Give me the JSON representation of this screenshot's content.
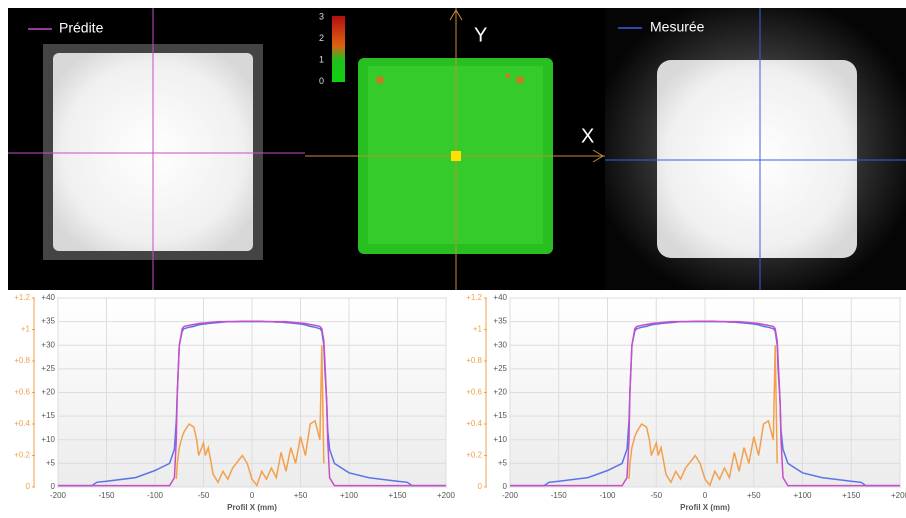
{
  "panels": {
    "predicted_label": "Prédite",
    "measured_label": "Mesurée",
    "axis_x": "X",
    "axis_y": "Y",
    "scale": [
      "3",
      "2",
      "1",
      "0"
    ]
  },
  "chart_data": [
    {
      "type": "line",
      "xlabel": "Profil X (mm)",
      "x": [
        -200,
        -165,
        -160,
        -150,
        -120,
        -100,
        -85,
        -80,
        -78,
        -77,
        -75,
        -72,
        -70,
        -65,
        -60,
        -57,
        -55,
        -50,
        -48,
        -45,
        -40,
        -35,
        -30,
        -25,
        -20,
        -10,
        -5,
        0,
        5,
        10,
        15,
        20,
        25,
        30,
        35,
        40,
        45,
        50,
        55,
        60,
        65,
        70,
        72,
        74,
        75,
        77,
        78,
        80,
        85,
        100,
        120,
        150,
        160,
        165,
        200
      ],
      "series": [
        {
          "color": "#5b74e8",
          "values": [
            0.3,
            0.3,
            1,
            1.2,
            2,
            3.5,
            5,
            8,
            14,
            20,
            30,
            33,
            33.5,
            33.8,
            34,
            34.2,
            34.3,
            34.5,
            34.5,
            34.6,
            34.7,
            34.8,
            34.9,
            35,
            35,
            35,
            35,
            35,
            35,
            35,
            35,
            35,
            34.9,
            34.9,
            34.8,
            34.7,
            34.6,
            34.5,
            34.3,
            34,
            33.8,
            33.5,
            33,
            30,
            25,
            18,
            12,
            8,
            5,
            3,
            2,
            1.2,
            1,
            0.3,
            0.3
          ]
        },
        {
          "color": "#c64fc8",
          "values": [
            0.3,
            0.3,
            0.3,
            0.3,
            0.3,
            0.3,
            0.3,
            2,
            10,
            20,
            30,
            33.5,
            34,
            34.2,
            34.4,
            34.5,
            34.6,
            34.7,
            34.7,
            34.8,
            34.9,
            35,
            35,
            35,
            35,
            35.1,
            35.1,
            35.1,
            35.1,
            35.1,
            35,
            35,
            35,
            35,
            35,
            34.9,
            34.8,
            34.7,
            34.6,
            34.4,
            34.2,
            34,
            33.5,
            31,
            27,
            18,
            10,
            2,
            0.3,
            0.3,
            0.3,
            0.3,
            0.3,
            0.3,
            0.3
          ]
        },
        {
          "color": "#f3a04c",
          "axis": "y2",
          "values": [
            null,
            null,
            null,
            null,
            null,
            null,
            null,
            null,
            0.05,
            0.15,
            0.25,
            0.32,
            0.35,
            0.4,
            0.38,
            0.3,
            0.2,
            0.28,
            0.2,
            0.25,
            0.08,
            0.03,
            0.1,
            0.05,
            0.12,
            0.2,
            0.15,
            0.05,
            0.01,
            0.1,
            0.05,
            0.12,
            0.06,
            0.22,
            0.1,
            0.25,
            0.15,
            0.32,
            0.2,
            0.4,
            0.42,
            0.3,
            0.9,
            0.15,
            null,
            null,
            null,
            null,
            null,
            null,
            null,
            null,
            null,
            null,
            null
          ]
        }
      ],
      "xlim": [
        -200,
        200
      ],
      "xticks": [
        -200,
        -150,
        -100,
        -50,
        0,
        {
          "value": 50,
          "label": "+50"
        },
        {
          "value": 100,
          "label": "+100"
        },
        {
          "value": 150,
          "label": "+150"
        },
        {
          "value": 200,
          "label": "+200"
        }
      ],
      "ylim": [
        0,
        40
      ],
      "yticks": [
        0,
        {
          "value": 5,
          "label": "+5"
        },
        {
          "value": 10,
          "label": "+10"
        },
        {
          "value": 15,
          "label": "+15"
        },
        {
          "value": 20,
          "label": "+20"
        },
        {
          "value": 25,
          "label": "+25"
        },
        {
          "value": 30,
          "label": "+30"
        },
        {
          "value": 35,
          "label": "+35"
        },
        {
          "value": 40,
          "label": "+40"
        }
      ],
      "y2lim": [
        0,
        1.2
      ],
      "y2ticks": [
        0,
        {
          "value": 0.2,
          "label": "+0.2"
        },
        {
          "value": 0.4,
          "label": "+0.4"
        },
        {
          "value": 0.6,
          "label": "+0.6"
        },
        {
          "value": 0.8,
          "label": "+0.8"
        },
        {
          "value": 1,
          "label": "+1"
        },
        {
          "value": 1.2,
          "label": "+1.2"
        }
      ],
      "grid": true
    },
    {
      "type": "line",
      "xlabel": "Profil X (mm)",
      "x": [
        -200,
        -165,
        -160,
        -150,
        -120,
        -100,
        -85,
        -80,
        -78,
        -77,
        -75,
        -72,
        -70,
        -65,
        -60,
        -57,
        -55,
        -50,
        -48,
        -45,
        -40,
        -35,
        -30,
        -25,
        -20,
        -10,
        -5,
        0,
        5,
        10,
        15,
        20,
        25,
        30,
        35,
        40,
        45,
        50,
        55,
        60,
        65,
        70,
        72,
        74,
        75,
        77,
        78,
        80,
        85,
        100,
        120,
        150,
        160,
        165,
        200
      ],
      "series": [
        {
          "color": "#5b74e8",
          "values": [
            0.3,
            0.3,
            1,
            1.2,
            2,
            3.5,
            5,
            8,
            14,
            20,
            30,
            33,
            33.5,
            33.8,
            34,
            34.2,
            34.3,
            34.5,
            34.5,
            34.6,
            34.7,
            34.8,
            34.9,
            35,
            35,
            35,
            35,
            35,
            35,
            35,
            35,
            35,
            34.9,
            34.9,
            34.8,
            34.7,
            34.6,
            34.5,
            34.3,
            34,
            33.8,
            33.5,
            33,
            30,
            25,
            18,
            12,
            8,
            5,
            3,
            2,
            1.2,
            1,
            0.3,
            0.3
          ]
        },
        {
          "color": "#c64fc8",
          "values": [
            0.3,
            0.3,
            0.3,
            0.3,
            0.3,
            0.3,
            0.3,
            2,
            10,
            20,
            30,
            33.5,
            34,
            34.2,
            34.4,
            34.5,
            34.6,
            34.7,
            34.7,
            34.8,
            34.9,
            35,
            35,
            35,
            35,
            35.1,
            35.1,
            35.1,
            35.1,
            35.1,
            35,
            35,
            35,
            35,
            35,
            34.9,
            34.8,
            34.7,
            34.6,
            34.4,
            34.2,
            34,
            33.5,
            31,
            27,
            18,
            10,
            2,
            0.3,
            0.3,
            0.3,
            0.3,
            0.3,
            0.3,
            0.3
          ]
        },
        {
          "color": "#f3a04c",
          "axis": "y2",
          "values": [
            null,
            null,
            null,
            null,
            null,
            null,
            null,
            null,
            0.05,
            0.15,
            0.25,
            0.32,
            0.35,
            0.4,
            0.38,
            0.3,
            0.2,
            0.28,
            0.2,
            0.25,
            0.08,
            0.03,
            0.1,
            0.05,
            0.12,
            0.2,
            0.15,
            0.05,
            0.01,
            0.1,
            0.05,
            0.12,
            0.06,
            0.22,
            0.1,
            0.25,
            0.15,
            0.32,
            0.2,
            0.4,
            0.42,
            0.3,
            0.9,
            0.15,
            null,
            null,
            null,
            null,
            null,
            null,
            null,
            null,
            null,
            null,
            null
          ]
        }
      ],
      "xlim": [
        -200,
        200
      ],
      "xticks": [
        -200,
        -150,
        -100,
        -50,
        0,
        {
          "value": 50,
          "label": "+50"
        },
        {
          "value": 100,
          "label": "+100"
        },
        {
          "value": 150,
          "label": "+150"
        },
        {
          "value": 200,
          "label": "+200"
        }
      ],
      "ylim": [
        0,
        40
      ],
      "yticks": [
        0,
        {
          "value": 5,
          "label": "+5"
        },
        {
          "value": 10,
          "label": "+10"
        },
        {
          "value": 15,
          "label": "+15"
        },
        {
          "value": 20,
          "label": "+20"
        },
        {
          "value": 25,
          "label": "+25"
        },
        {
          "value": 30,
          "label": "+30"
        },
        {
          "value": 35,
          "label": "+35"
        },
        {
          "value": 40,
          "label": "+40"
        }
      ],
      "y2lim": [
        0,
        1.2
      ],
      "y2ticks": [
        0,
        {
          "value": 0.2,
          "label": "+0.2"
        },
        {
          "value": 0.4,
          "label": "+0.4"
        },
        {
          "value": 0.6,
          "label": "+0.6"
        },
        {
          "value": 0.8,
          "label": "+0.8"
        },
        {
          "value": 1,
          "label": "+1"
        },
        {
          "value": 1.2,
          "label": "+1.2"
        }
      ],
      "grid": true
    }
  ]
}
